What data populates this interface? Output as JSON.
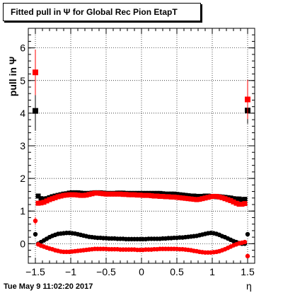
{
  "title": "Fitted pull in  Ψ  for Global Rec Pion EtapT",
  "ylabel": "pull in  Ψ",
  "xlabel": "η",
  "timestamp": "Tue May  9 11:02:20 2017",
  "chart_data": {
    "type": "scatter",
    "xlim": [
      -1.6,
      1.6
    ],
    "ylim": [
      -0.6,
      6.6
    ],
    "grid": true,
    "xticks": [
      -1.5,
      -1,
      -0.5,
      0,
      0.5,
      1,
      1.5
    ],
    "xtick_labels": [
      "−1.5",
      "−1",
      "−0.5",
      "0",
      "0.5",
      "1",
      "1.5"
    ],
    "yticks": [
      0,
      1,
      2,
      3,
      4,
      5,
      6
    ],
    "ytick_labels": [
      "0",
      "1",
      "2",
      "3",
      "4",
      "5",
      "6"
    ],
    "x": [
      -1.5,
      -1.46,
      -1.42,
      -1.38,
      -1.34,
      -1.3,
      -1.26,
      -1.22,
      -1.18,
      -1.14,
      -1.1,
      -1.06,
      -1.02,
      -0.98,
      -0.94,
      -0.9,
      -0.86,
      -0.82,
      -0.78,
      -0.74,
      -0.7,
      -0.66,
      -0.62,
      -0.58,
      -0.54,
      -0.5,
      -0.46,
      -0.42,
      -0.38,
      -0.34,
      -0.3,
      -0.26,
      -0.22,
      -0.18,
      -0.14,
      -0.1,
      -0.06,
      -0.02,
      0.02,
      0.06,
      0.1,
      0.14,
      0.18,
      0.22,
      0.26,
      0.3,
      0.34,
      0.38,
      0.42,
      0.46,
      0.5,
      0.54,
      0.58,
      0.62,
      0.66,
      0.7,
      0.74,
      0.78,
      0.82,
      0.86,
      0.9,
      0.94,
      0.98,
      1.02,
      1.06,
      1.1,
      1.14,
      1.18,
      1.22,
      1.26,
      1.3,
      1.34,
      1.38,
      1.42,
      1.46,
      1.5
    ],
    "series": [
      {
        "marker": "square",
        "color": "#000000",
        "values": [
          4.07,
          1.46,
          1.38,
          1.36,
          1.38,
          1.41,
          1.44,
          1.46,
          1.48,
          1.5,
          1.52,
          1.53,
          1.55,
          1.56,
          1.56,
          1.56,
          1.55,
          1.54,
          1.54,
          1.54,
          1.55,
          1.56,
          1.56,
          1.56,
          1.55,
          1.54,
          1.54,
          1.54,
          1.54,
          1.55,
          1.55,
          1.55,
          1.54,
          1.54,
          1.54,
          1.54,
          1.54,
          1.54,
          1.54,
          1.54,
          1.54,
          1.54,
          1.54,
          1.54,
          1.54,
          1.53,
          1.52,
          1.52,
          1.52,
          1.52,
          1.51,
          1.5,
          1.49,
          1.48,
          1.47,
          1.46,
          1.46,
          1.45,
          1.45,
          1.45,
          1.46,
          1.46,
          1.45,
          1.45,
          1.44,
          1.44,
          1.43,
          1.42,
          1.41,
          1.4,
          1.38,
          1.37,
          1.37,
          1.35,
          1.36,
          4.08
        ],
        "err_lo": [
          0.6,
          0.05,
          0.04,
          0.04,
          0.04,
          0.04,
          0.04,
          0.04,
          0.04,
          0.04,
          0.04,
          0.04,
          0.04,
          0.04,
          0.04,
          0.04,
          0.04,
          0.04,
          0.04,
          0.04,
          0.04,
          0.04,
          0.04,
          0.04,
          0.04,
          0.04,
          0.04,
          0.04,
          0.04,
          0.04,
          0.04,
          0.04,
          0.04,
          0.04,
          0.04,
          0.04,
          0.04,
          0.04,
          0.04,
          0.04,
          0.04,
          0.04,
          0.04,
          0.04,
          0.04,
          0.04,
          0.04,
          0.04,
          0.04,
          0.04,
          0.04,
          0.04,
          0.04,
          0.04,
          0.04,
          0.04,
          0.04,
          0.04,
          0.04,
          0.04,
          0.04,
          0.04,
          0.04,
          0.04,
          0.04,
          0.04,
          0.04,
          0.04,
          0.04,
          0.04,
          0.04,
          0.04,
          0.04,
          0.04,
          0.05,
          0.4
        ],
        "err_hi": [
          0.6,
          0.05,
          0.04,
          0.04,
          0.04,
          0.04,
          0.04,
          0.04,
          0.04,
          0.04,
          0.04,
          0.04,
          0.04,
          0.04,
          0.04,
          0.04,
          0.04,
          0.04,
          0.04,
          0.04,
          0.04,
          0.04,
          0.04,
          0.04,
          0.04,
          0.04,
          0.04,
          0.04,
          0.04,
          0.04,
          0.04,
          0.04,
          0.04,
          0.04,
          0.04,
          0.04,
          0.04,
          0.04,
          0.04,
          0.04,
          0.04,
          0.04,
          0.04,
          0.04,
          0.04,
          0.04,
          0.04,
          0.04,
          0.04,
          0.04,
          0.04,
          0.04,
          0.04,
          0.04,
          0.04,
          0.04,
          0.04,
          0.04,
          0.04,
          0.04,
          0.04,
          0.04,
          0.04,
          0.04,
          0.04,
          0.04,
          0.04,
          0.04,
          0.04,
          0.04,
          0.04,
          0.04,
          0.04,
          0.04,
          0.05,
          0.4
        ]
      },
      {
        "marker": "square",
        "color": "#ff0000",
        "values": [
          5.25,
          1.24,
          1.25,
          1.27,
          1.31,
          1.35,
          1.38,
          1.41,
          1.44,
          1.46,
          1.48,
          1.49,
          1.5,
          1.5,
          1.5,
          1.49,
          1.48,
          1.48,
          1.49,
          1.51,
          1.53,
          1.55,
          1.55,
          1.54,
          1.53,
          1.52,
          1.52,
          1.52,
          1.52,
          1.52,
          1.52,
          1.51,
          1.51,
          1.5,
          1.5,
          1.5,
          1.49,
          1.49,
          1.48,
          1.48,
          1.48,
          1.47,
          1.46,
          1.46,
          1.45,
          1.45,
          1.44,
          1.44,
          1.43,
          1.43,
          1.42,
          1.41,
          1.4,
          1.39,
          1.38,
          1.37,
          1.36,
          1.35,
          1.36,
          1.38,
          1.4,
          1.42,
          1.44,
          1.45,
          1.45,
          1.43,
          1.41,
          1.38,
          1.35,
          1.32,
          1.28,
          1.24,
          1.21,
          1.21,
          1.23,
          4.42
        ],
        "err_lo": [
          0.7,
          0.05,
          0.04,
          0.04,
          0.04,
          0.04,
          0.04,
          0.04,
          0.04,
          0.04,
          0.04,
          0.04,
          0.04,
          0.04,
          0.04,
          0.04,
          0.04,
          0.04,
          0.04,
          0.04,
          0.04,
          0.04,
          0.04,
          0.04,
          0.04,
          0.04,
          0.04,
          0.04,
          0.04,
          0.04,
          0.04,
          0.04,
          0.04,
          0.04,
          0.04,
          0.04,
          0.04,
          0.04,
          0.04,
          0.04,
          0.04,
          0.04,
          0.04,
          0.04,
          0.04,
          0.04,
          0.04,
          0.04,
          0.04,
          0.04,
          0.04,
          0.04,
          0.04,
          0.04,
          0.04,
          0.04,
          0.04,
          0.04,
          0.04,
          0.04,
          0.04,
          0.04,
          0.04,
          0.04,
          0.04,
          0.04,
          0.04,
          0.04,
          0.04,
          0.04,
          0.04,
          0.04,
          0.04,
          0.04,
          0.05,
          0.6
        ],
        "err_hi": [
          0.7,
          0.05,
          0.04,
          0.04,
          0.04,
          0.04,
          0.04,
          0.04,
          0.04,
          0.04,
          0.04,
          0.04,
          0.04,
          0.04,
          0.04,
          0.04,
          0.04,
          0.04,
          0.04,
          0.04,
          0.04,
          0.04,
          0.04,
          0.04,
          0.04,
          0.04,
          0.04,
          0.04,
          0.04,
          0.04,
          0.04,
          0.04,
          0.04,
          0.04,
          0.04,
          0.04,
          0.04,
          0.04,
          0.04,
          0.04,
          0.04,
          0.04,
          0.04,
          0.04,
          0.04,
          0.04,
          0.04,
          0.04,
          0.04,
          0.04,
          0.04,
          0.04,
          0.04,
          0.04,
          0.04,
          0.04,
          0.04,
          0.04,
          0.04,
          0.04,
          0.04,
          0.04,
          0.04,
          0.04,
          0.04,
          0.04,
          0.04,
          0.04,
          0.04,
          0.04,
          0.04,
          0.04,
          0.04,
          0.04,
          0.05,
          0.6
        ]
      },
      {
        "marker": "circle",
        "color": "#000000",
        "values": [
          0.29,
          0.0,
          0.05,
          0.1,
          0.15,
          0.2,
          0.24,
          0.27,
          0.3,
          0.31,
          0.32,
          0.33,
          0.33,
          0.32,
          0.31,
          0.29,
          0.27,
          0.25,
          0.23,
          0.21,
          0.2,
          0.19,
          0.18,
          0.18,
          0.17,
          0.17,
          0.16,
          0.16,
          0.16,
          0.15,
          0.15,
          0.15,
          0.14,
          0.14,
          0.14,
          0.14,
          0.14,
          0.14,
          0.14,
          0.14,
          0.15,
          0.15,
          0.15,
          0.15,
          0.15,
          0.16,
          0.16,
          0.17,
          0.17,
          0.18,
          0.18,
          0.19,
          0.19,
          0.2,
          0.21,
          0.22,
          0.23,
          0.24,
          0.26,
          0.28,
          0.3,
          0.32,
          0.33,
          0.32,
          0.3,
          0.27,
          0.23,
          0.2,
          0.16,
          0.12,
          0.08,
          0.05,
          0.02,
          0.0,
          0.0,
          0.29
        ],
        "err_lo": [
          0.03,
          0.02,
          0.02,
          0.02,
          0.02,
          0.02,
          0.02,
          0.02,
          0.02,
          0.02,
          0.02,
          0.02,
          0.02,
          0.02,
          0.02,
          0.02,
          0.02,
          0.02,
          0.02,
          0.02,
          0.02,
          0.02,
          0.02,
          0.02,
          0.02,
          0.02,
          0.02,
          0.02,
          0.02,
          0.02,
          0.02,
          0.02,
          0.02,
          0.02,
          0.02,
          0.02,
          0.02,
          0.02,
          0.02,
          0.02,
          0.02,
          0.02,
          0.02,
          0.02,
          0.02,
          0.02,
          0.02,
          0.02,
          0.02,
          0.02,
          0.02,
          0.02,
          0.02,
          0.02,
          0.02,
          0.02,
          0.02,
          0.02,
          0.02,
          0.02,
          0.02,
          0.02,
          0.02,
          0.02,
          0.02,
          0.02,
          0.02,
          0.02,
          0.02,
          0.02,
          0.02,
          0.02,
          0.02,
          0.02,
          0.02,
          0.03
        ],
        "err_hi": [
          0.03,
          0.02,
          0.02,
          0.02,
          0.02,
          0.02,
          0.02,
          0.02,
          0.02,
          0.02,
          0.02,
          0.02,
          0.02,
          0.02,
          0.02,
          0.02,
          0.02,
          0.02,
          0.02,
          0.02,
          0.02,
          0.02,
          0.02,
          0.02,
          0.02,
          0.02,
          0.02,
          0.02,
          0.02,
          0.02,
          0.02,
          0.02,
          0.02,
          0.02,
          0.02,
          0.02,
          0.02,
          0.02,
          0.02,
          0.02,
          0.02,
          0.02,
          0.02,
          0.02,
          0.02,
          0.02,
          0.02,
          0.02,
          0.02,
          0.02,
          0.02,
          0.02,
          0.02,
          0.02,
          0.02,
          0.02,
          0.02,
          0.02,
          0.02,
          0.02,
          0.02,
          0.02,
          0.02,
          0.02,
          0.02,
          0.02,
          0.02,
          0.02,
          0.02,
          0.02,
          0.02,
          0.02,
          0.02,
          0.02,
          0.02,
          0.03
        ]
      },
      {
        "marker": "circle",
        "color": "#ff0000",
        "values": [
          0.7,
          -0.02,
          -0.06,
          -0.09,
          -0.12,
          -0.15,
          -0.17,
          -0.2,
          -0.22,
          -0.24,
          -0.25,
          -0.25,
          -0.25,
          -0.24,
          -0.23,
          -0.22,
          -0.21,
          -0.2,
          -0.19,
          -0.18,
          -0.17,
          -0.16,
          -0.16,
          -0.16,
          -0.16,
          -0.16,
          -0.17,
          -0.17,
          -0.17,
          -0.17,
          -0.18,
          -0.18,
          -0.18,
          -0.18,
          -0.18,
          -0.18,
          -0.19,
          -0.19,
          -0.19,
          -0.18,
          -0.18,
          -0.18,
          -0.17,
          -0.17,
          -0.16,
          -0.16,
          -0.16,
          -0.16,
          -0.16,
          -0.16,
          -0.16,
          -0.17,
          -0.17,
          -0.18,
          -0.19,
          -0.2,
          -0.22,
          -0.23,
          -0.25,
          -0.26,
          -0.27,
          -0.27,
          -0.27,
          -0.26,
          -0.25,
          -0.23,
          -0.2,
          -0.17,
          -0.13,
          -0.09,
          -0.05,
          -0.02,
          0.01,
          0.03,
          0.05,
          -0.38
        ],
        "err_lo": [
          0.12,
          0.02,
          0.02,
          0.02,
          0.02,
          0.02,
          0.02,
          0.02,
          0.02,
          0.02,
          0.02,
          0.02,
          0.02,
          0.02,
          0.02,
          0.02,
          0.02,
          0.02,
          0.02,
          0.02,
          0.02,
          0.02,
          0.02,
          0.02,
          0.02,
          0.02,
          0.02,
          0.02,
          0.02,
          0.02,
          0.02,
          0.02,
          0.02,
          0.02,
          0.02,
          0.02,
          0.02,
          0.02,
          0.02,
          0.02,
          0.02,
          0.02,
          0.02,
          0.02,
          0.02,
          0.02,
          0.02,
          0.02,
          0.02,
          0.02,
          0.02,
          0.02,
          0.02,
          0.02,
          0.02,
          0.02,
          0.02,
          0.02,
          0.02,
          0.02,
          0.02,
          0.02,
          0.02,
          0.02,
          0.02,
          0.02,
          0.02,
          0.02,
          0.02,
          0.02,
          0.02,
          0.02,
          0.02,
          0.02,
          0.02,
          0.05
        ],
        "err_hi": [
          0.12,
          0.02,
          0.02,
          0.02,
          0.02,
          0.02,
          0.02,
          0.02,
          0.02,
          0.02,
          0.02,
          0.02,
          0.02,
          0.02,
          0.02,
          0.02,
          0.02,
          0.02,
          0.02,
          0.02,
          0.02,
          0.02,
          0.02,
          0.02,
          0.02,
          0.02,
          0.02,
          0.02,
          0.02,
          0.02,
          0.02,
          0.02,
          0.02,
          0.02,
          0.02,
          0.02,
          0.02,
          0.02,
          0.02,
          0.02,
          0.02,
          0.02,
          0.02,
          0.02,
          0.02,
          0.02,
          0.02,
          0.02,
          0.02,
          0.02,
          0.02,
          0.02,
          0.02,
          0.02,
          0.02,
          0.02,
          0.02,
          0.02,
          0.02,
          0.02,
          0.02,
          0.02,
          0.02,
          0.02,
          0.02,
          0.02,
          0.02,
          0.02,
          0.02,
          0.02,
          0.02,
          0.02,
          0.02,
          0.02,
          0.02,
          0.05
        ]
      }
    ]
  }
}
